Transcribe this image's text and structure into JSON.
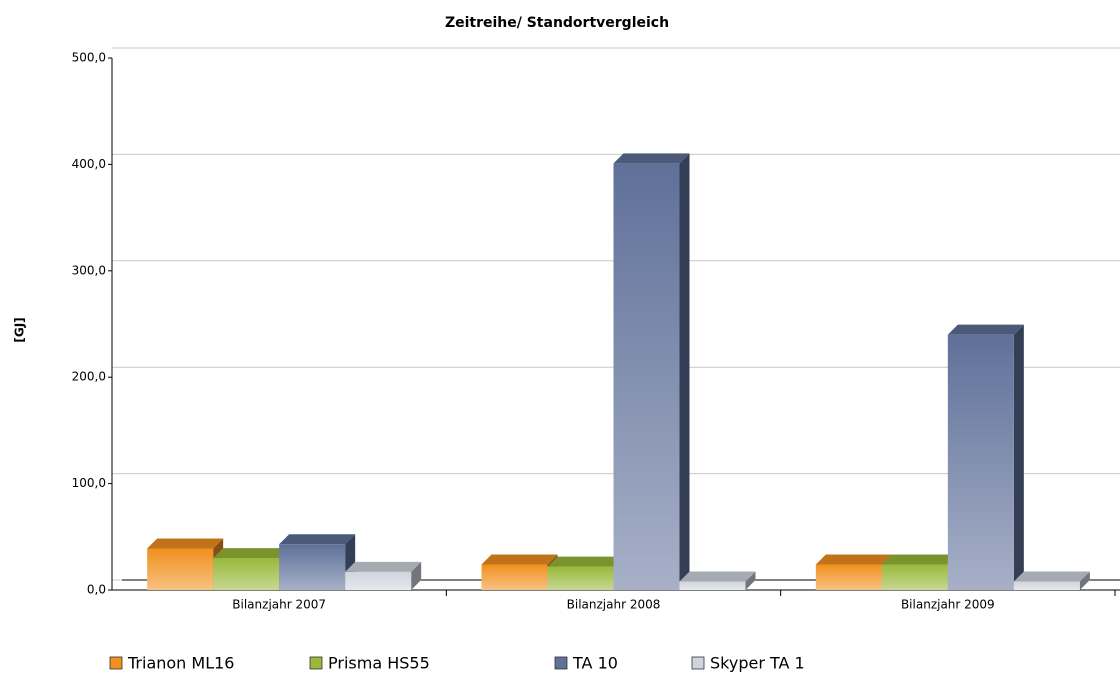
{
  "chart_data": {
    "type": "bar3d",
    "title": "Zeitreihe/ Standortvergleich",
    "y_label": "[GJ]",
    "categories": [
      "Bilanzjahr 2007",
      "Bilanzjahr 2008",
      "Bilanzjahr 2009"
    ],
    "series": [
      {
        "name": "Trianon ML16",
        "color": "#f0901e",
        "values": [
          39,
          24,
          24
        ]
      },
      {
        "name": "Prisma HS55",
        "color": "#9ab83a",
        "values": [
          30,
          22,
          24
        ]
      },
      {
        "name": "TA 10",
        "color": "#5f7099",
        "values": [
          43,
          401,
          240
        ]
      },
      {
        "name": "Skyper TA 1",
        "color": "#cfd5dd",
        "values": [
          17,
          8,
          8
        ]
      }
    ],
    "ylim": [
      0,
      500
    ],
    "yticks": [
      {
        "value": 0,
        "label": "0,0"
      },
      {
        "value": 100,
        "label": "100,0"
      },
      {
        "value": 200,
        "label": "200,0"
      },
      {
        "value": 300,
        "label": "300,0"
      },
      {
        "value": 400,
        "label": "400,0"
      },
      {
        "value": 500,
        "label": "500,0"
      }
    ],
    "grid": true
  }
}
